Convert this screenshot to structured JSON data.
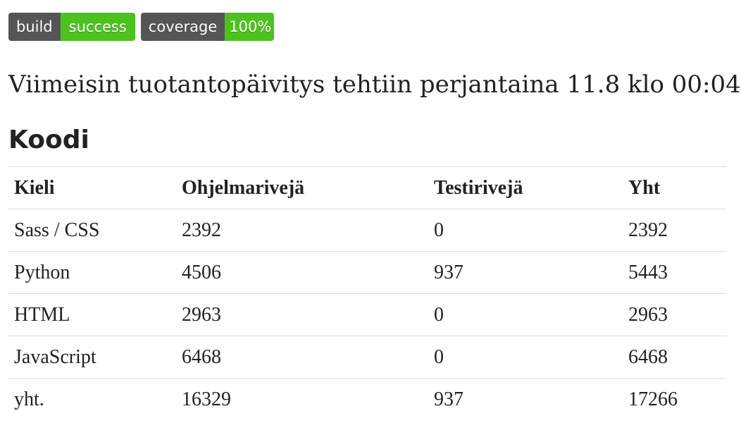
{
  "badges": [
    {
      "label": "build",
      "value": "success"
    },
    {
      "label": "coverage",
      "value": "100%"
    }
  ],
  "colors": {
    "badge_label_bg": "#555555",
    "badge_value_bg": "#4dc21f",
    "text": "#222222",
    "row_border": "#dddddd"
  },
  "deploy_text": "Viimeisin tuotantopäivitys tehtiin perjantaina 11.8 klo 00:04.",
  "section_title": "Koodi",
  "table": {
    "headers": [
      "Kieli",
      "Ohjelmarivejä",
      "Testirivejä",
      "Yht"
    ],
    "rows": [
      [
        "Sass / CSS",
        "2392",
        "0",
        "2392"
      ],
      [
        "Python",
        "4506",
        "937",
        "5443"
      ],
      [
        "HTML",
        "2963",
        "0",
        "2963"
      ],
      [
        "JavaScript",
        "6468",
        "0",
        "6468"
      ],
      [
        "yht.",
        "16329",
        "937",
        "17266"
      ]
    ]
  }
}
